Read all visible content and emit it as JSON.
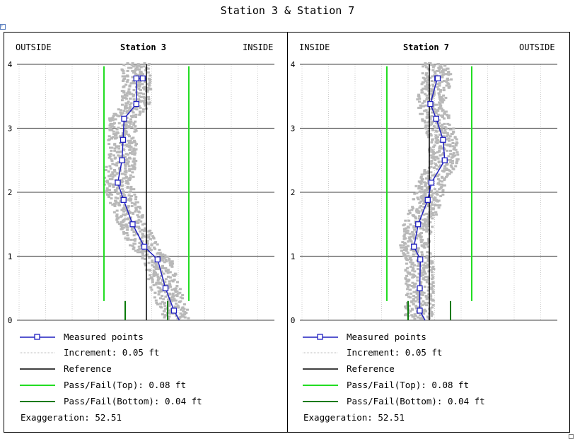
{
  "title": "Station 3 & Station 7",
  "colors": {
    "measured": "#1f1fbf",
    "increment": "#bbbbbb",
    "reference": "#000000",
    "pass_top": "#22dd22",
    "pass_bottom": "#0a7a0a",
    "scatter": "#b8b8b8",
    "grid_major": "#666666",
    "grid_minor": "#cccccc"
  },
  "chart_data": [
    {
      "type": "line",
      "title": "Station 3",
      "left_label": "OUTSIDE",
      "right_label": "INSIDE",
      "yticks": [
        "0",
        "1",
        "2",
        "3",
        "4"
      ],
      "ylim": [
        0,
        4
      ],
      "xlim": [
        -0.24,
        0.24
      ],
      "grid": true,
      "x_grid_increment": 0.05,
      "reference_x": 0,
      "pass_top_x": [
        -0.08,
        0.08
      ],
      "pass_bottom_x": [
        -0.04,
        0.04
      ],
      "series": [
        {
          "name": "Measured points",
          "x": [
            0.052,
            0.036,
            0.021,
            -0.004,
            -0.026,
            -0.043,
            -0.054,
            -0.046,
            -0.044,
            -0.042,
            -0.019,
            -0.019,
            -0.007
          ],
          "y": [
            0.15,
            0.5,
            0.95,
            1.15,
            1.5,
            1.88,
            2.15,
            2.5,
            2.82,
            3.15,
            3.38,
            3.78,
            3.78
          ]
        }
      ]
    },
    {
      "type": "line",
      "title": "Station 7",
      "left_label": "INSIDE",
      "right_label": "OUTSIDE",
      "yticks": [
        "0",
        "1",
        "2",
        "3",
        "4"
      ],
      "ylim": [
        0,
        4
      ],
      "xlim": [
        -0.24,
        0.24
      ],
      "grid": true,
      "x_grid_increment": 0.05,
      "reference_x": 0,
      "pass_top_x": [
        -0.08,
        0.08
      ],
      "pass_bottom_x": [
        -0.04,
        0.04
      ],
      "series": [
        {
          "name": "Measured points",
          "x": [
            -0.018,
            -0.018,
            -0.017,
            -0.029,
            -0.021,
            -0.003,
            0.004,
            0.029,
            0.026,
            0.013,
            0.002,
            0.015,
            0.016
          ],
          "y": [
            0.15,
            0.5,
            0.95,
            1.15,
            1.5,
            1.88,
            2.15,
            2.5,
            2.82,
            3.15,
            3.38,
            3.78,
            3.78
          ]
        }
      ]
    }
  ],
  "legend": {
    "measured": "Measured points",
    "increment": "Increment: 0.05 ft",
    "reference": "Reference",
    "pass_top": "Pass/Fail(Top): 0.08 ft",
    "pass_bottom": "Pass/Fail(Bottom): 0.04 ft",
    "exaggeration": "Exaggeration: 52.51"
  }
}
